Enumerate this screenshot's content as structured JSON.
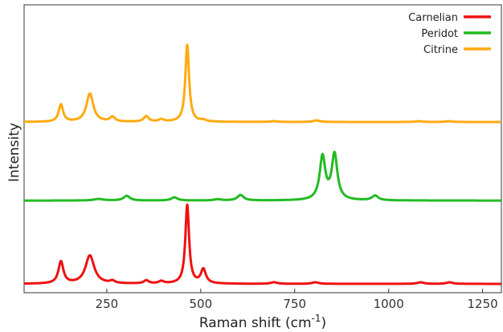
{
  "chart_data": {
    "type": "line",
    "title": "",
    "xlabel": "Raman shift (cm",
    "xlabel_superscript": "-1",
    "xlabel_suffix": ")",
    "ylabel": "Intensity",
    "xlim": [
      30,
      1300
    ],
    "x_ticks": [
      250,
      500,
      750,
      1000,
      1250
    ],
    "y_ticks_shown": false,
    "grid": false,
    "legend_position": "top-right",
    "series": [
      {
        "name": "Carnelian",
        "color": "#ee1111",
        "baseline": 0.0,
        "peaks": [
          {
            "x": 128,
            "height": 0.28,
            "width": 8
          },
          {
            "x": 205,
            "height": 0.36,
            "width": 14
          },
          {
            "x": 265,
            "height": 0.03,
            "width": 8
          },
          {
            "x": 355,
            "height": 0.04,
            "width": 8
          },
          {
            "x": 395,
            "height": 0.03,
            "width": 8
          },
          {
            "x": 464,
            "height": 1.0,
            "width": 6
          },
          {
            "x": 507,
            "height": 0.18,
            "width": 8
          },
          {
            "x": 695,
            "height": 0.02,
            "width": 10
          },
          {
            "x": 805,
            "height": 0.02,
            "width": 10
          },
          {
            "x": 1085,
            "height": 0.02,
            "width": 10
          },
          {
            "x": 1162,
            "height": 0.02,
            "width": 10
          }
        ]
      },
      {
        "name": "Peridot",
        "color": "#22bb22",
        "baseline": 1.06,
        "peaks": [
          {
            "x": 228,
            "height": 0.02,
            "width": 15
          },
          {
            "x": 303,
            "height": 0.06,
            "width": 10
          },
          {
            "x": 430,
            "height": 0.04,
            "width": 10
          },
          {
            "x": 545,
            "height": 0.015,
            "width": 12
          },
          {
            "x": 606,
            "height": 0.07,
            "width": 10
          },
          {
            "x": 824,
            "height": 0.55,
            "width": 9
          },
          {
            "x": 856,
            "height": 0.58,
            "width": 9
          },
          {
            "x": 964,
            "height": 0.06,
            "width": 10
          }
        ]
      },
      {
        "name": "Citrine",
        "color": "#ffaa11",
        "baseline": 2.06,
        "peaks": [
          {
            "x": 128,
            "height": 0.22,
            "width": 7
          },
          {
            "x": 205,
            "height": 0.36,
            "width": 11
          },
          {
            "x": 265,
            "height": 0.06,
            "width": 8
          },
          {
            "x": 355,
            "height": 0.07,
            "width": 8
          },
          {
            "x": 395,
            "height": 0.03,
            "width": 8
          },
          {
            "x": 464,
            "height": 0.98,
            "width": 6
          },
          {
            "x": 507,
            "height": 0.02,
            "width": 8
          },
          {
            "x": 695,
            "height": 0.01,
            "width": 10
          },
          {
            "x": 808,
            "height": 0.02,
            "width": 10
          },
          {
            "x": 1080,
            "height": 0.01,
            "width": 10
          },
          {
            "x": 1160,
            "height": 0.01,
            "width": 10
          }
        ]
      }
    ]
  }
}
